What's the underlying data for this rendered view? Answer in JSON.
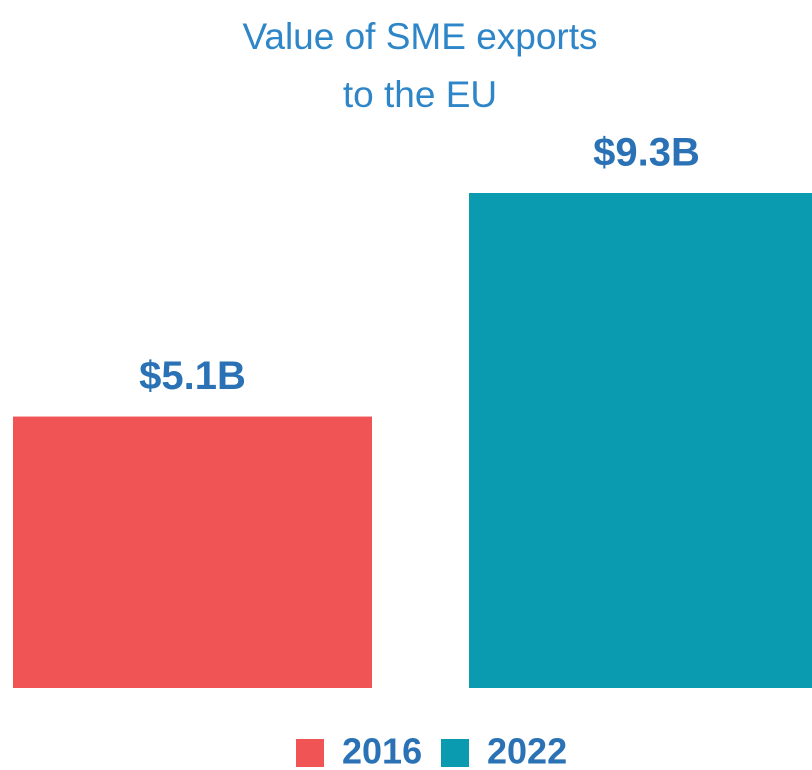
{
  "chart_data": {
    "type": "bar",
    "title": "Value of SME exports to the EU",
    "categories": [
      null
    ],
    "series": [
      {
        "name": "2016",
        "color": "#f05454",
        "values": [
          5.1
        ],
        "value_labels": [
          "$5.1B"
        ]
      },
      {
        "name": "2022",
        "color": "#0a9bb0",
        "values": [
          9.3
        ],
        "value_labels": [
          "$9.3B"
        ]
      }
    ],
    "legend": "bottom"
  }
}
